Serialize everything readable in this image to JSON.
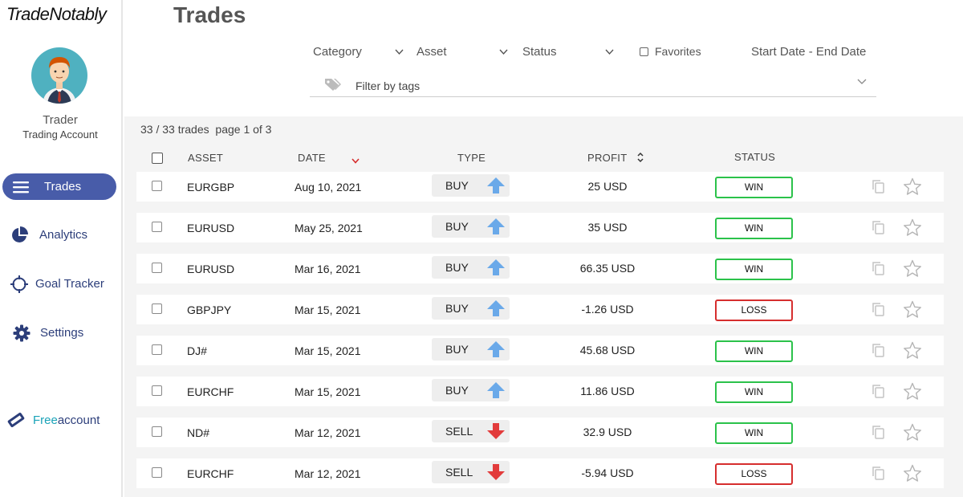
{
  "app": {
    "logo": "TradeNotably"
  },
  "user": {
    "name": "Trader",
    "account": "Trading Account"
  },
  "nav": [
    {
      "label": "Trades",
      "icon": "menu-icon",
      "active": true
    },
    {
      "label": "Analytics",
      "icon": "pie-chart-icon"
    },
    {
      "label": "Goal Tracker",
      "icon": "crosshair-icon"
    },
    {
      "label": "Settings",
      "icon": "gear-icon"
    }
  ],
  "free_account": {
    "highlight": "Free",
    "rest": "account",
    "icon": "ticket-icon"
  },
  "page": {
    "title": "Trades"
  },
  "filters": {
    "category": "Category",
    "asset": "Asset",
    "status": "Status",
    "favorites": "Favorites",
    "date_range": "Start Date - End Date",
    "tags_placeholder": "Filter by tags"
  },
  "summary": {
    "count": "33 / 33 trades",
    "page": "page 1 of 3"
  },
  "columns": {
    "asset": "ASSET",
    "date": "DATE",
    "type": "TYPE",
    "profit": "PROFIT",
    "status": "STATUS"
  },
  "colors": {
    "accent": "#485ca9",
    "win": "#2bc24a",
    "loss": "#d62e2e",
    "buy_arrow": "#6aa9e9",
    "sell_arrow": "#e23b3b"
  },
  "trades": [
    {
      "asset": "EURGBP",
      "date": "Aug 10, 2021",
      "type": "BUY",
      "profit": "25 USD",
      "status": "WIN"
    },
    {
      "asset": "EURUSD",
      "date": "May 25, 2021",
      "type": "BUY",
      "profit": "35 USD",
      "status": "WIN"
    },
    {
      "asset": "EURUSD",
      "date": "Mar 16, 2021",
      "type": "BUY",
      "profit": "66.35 USD",
      "status": "WIN"
    },
    {
      "asset": "GBPJPY",
      "date": "Mar 15, 2021",
      "type": "BUY",
      "profit": "-1.26 USD",
      "status": "LOSS"
    },
    {
      "asset": "DJ#",
      "date": "Mar 15, 2021",
      "type": "BUY",
      "profit": "45.68 USD",
      "status": "WIN"
    },
    {
      "asset": "EURCHF",
      "date": "Mar 15, 2021",
      "type": "BUY",
      "profit": "11.86 USD",
      "status": "WIN"
    },
    {
      "asset": "ND#",
      "date": "Mar 12, 2021",
      "type": "SELL",
      "profit": "32.9 USD",
      "status": "WIN"
    },
    {
      "asset": "EURCHF",
      "date": "Mar 12, 2021",
      "type": "SELL",
      "profit": "-5.94 USD",
      "status": "LOSS"
    }
  ]
}
